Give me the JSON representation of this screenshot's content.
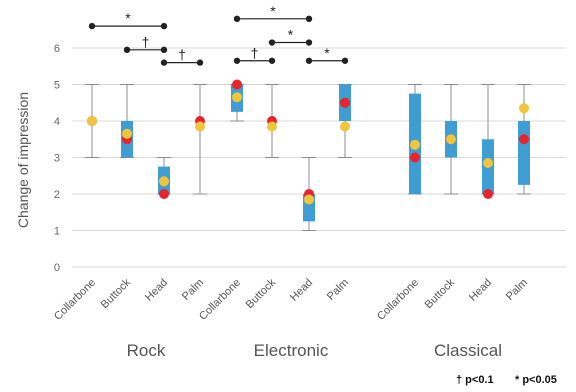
{
  "chart_data": {
    "type": "box",
    "ylabel": "Change of impression",
    "ylim": [
      0,
      6
    ],
    "yticks": [
      0,
      1,
      2,
      3,
      4,
      5,
      6
    ],
    "grid": true,
    "groups": [
      {
        "name": "Rock",
        "categories": [
          {
            "label": "Collarbone",
            "min": 3,
            "q1": 4,
            "median": 4,
            "q3": 4,
            "max": 5,
            "mean": 4,
            "mode": 4,
            "has_box": false
          },
          {
            "label": "Buttock",
            "min": 3,
            "q1": 3,
            "median": 3.5,
            "q3": 4,
            "max": 5,
            "mean": 3.65,
            "mode": 3.5,
            "has_box": true
          },
          {
            "label": "Head",
            "min": 2,
            "q1": 2,
            "median": 2,
            "q3": 2.75,
            "max": 3,
            "mean": 2.35,
            "mode": 2,
            "has_box": true
          },
          {
            "label": "Palm",
            "min": 2,
            "q1": 4,
            "median": 4,
            "q3": 4,
            "max": 5,
            "mean": 3.85,
            "mode": 4,
            "has_box": false
          }
        ]
      },
      {
        "name": "Electronic",
        "categories": [
          {
            "label": "Collarbone",
            "min": 4,
            "q1": 4.25,
            "median": 5,
            "q3": 5,
            "max": 5,
            "mean": 4.65,
            "mode": 5,
            "has_box": true
          },
          {
            "label": "Buttock",
            "min": 3,
            "q1": 4,
            "median": 4,
            "q3": 4,
            "max": 5,
            "mean": 3.85,
            "mode": 4,
            "has_box": false
          },
          {
            "label": "Head",
            "min": 1,
            "q1": 1.25,
            "median": 2,
            "q3": 2,
            "max": 3,
            "mean": 1.85,
            "mode": 2,
            "has_box": true
          },
          {
            "label": "Palm",
            "min": 3,
            "q1": 4,
            "median": 4.5,
            "q3": 5,
            "max": 5,
            "mean": 3.85,
            "mode": 4.5,
            "has_box": true
          }
        ]
      },
      {
        "name": "Classical",
        "categories": [
          {
            "label": "Collarbone",
            "min": 2,
            "q1": 2,
            "median": 3,
            "q3": 4.75,
            "max": 5,
            "mean": 3.35,
            "mode": 3,
            "has_box": true
          },
          {
            "label": "Buttock",
            "min": 2,
            "q1": 3,
            "median": 3.5,
            "q3": 4,
            "max": 5,
            "mean": 3.5,
            "mode": 3.5,
            "has_box": true
          },
          {
            "label": "Head",
            "min": 2,
            "q1": 2,
            "median": 2,
            "q3": 3.5,
            "max": 5,
            "mean": 2.85,
            "mode": 2,
            "has_box": true
          },
          {
            "label": "Palm",
            "min": 2,
            "q1": 2.25,
            "median": 3.5,
            "q3": 4,
            "max": 5,
            "mean": 4.35,
            "mode": 3.5,
            "has_box": true
          }
        ]
      }
    ],
    "significance": [
      {
        "group": 0,
        "from": 0,
        "to": 2,
        "level": 6.6,
        "mark": "*"
      },
      {
        "group": 0,
        "from": 1,
        "to": 2,
        "level": 5.95,
        "mark": "†"
      },
      {
        "group": 0,
        "from": 2,
        "to": 3,
        "level": 5.6,
        "mark": "†"
      },
      {
        "group": 1,
        "from": 0,
        "to": 2,
        "level": 6.8,
        "mark": "*"
      },
      {
        "group": 1,
        "from": 0,
        "to": 1,
        "level": 5.65,
        "mark": "†"
      },
      {
        "group": 1,
        "from": 1,
        "to": 2,
        "level": 6.15,
        "mark": "*"
      },
      {
        "group": 1,
        "from": 2,
        "to": 3,
        "level": 5.65,
        "mark": "*"
      }
    ],
    "colors": {
      "box": "#3e9ed4",
      "whisker": "#8c8c8c",
      "median_marker": "#e8242d",
      "mean_marker": "#f0c53c",
      "grid": "#d9d9d9",
      "bracket": "#222222"
    },
    "legend": {
      "marginal": "† p<0.1",
      "significant": "* p<0.05"
    }
  }
}
